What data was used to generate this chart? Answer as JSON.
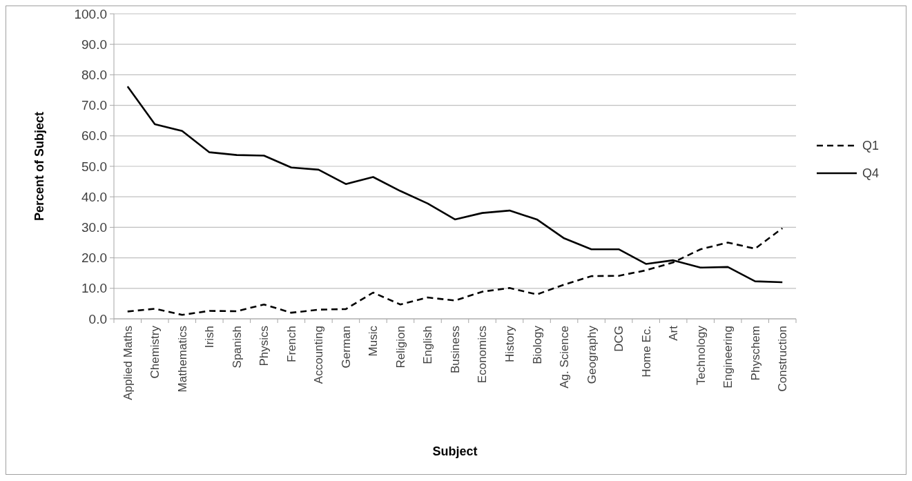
{
  "chart_data": {
    "type": "line",
    "xlabel": "Subject",
    "ylabel": "Percent of Subject",
    "categories": [
      "Applied Maths",
      "Chemistry",
      "Mathematics",
      "Irish",
      "Spanish",
      "Physics",
      "French",
      "Accounting",
      "German",
      "Music",
      "Religion",
      "English",
      "Business",
      "Economics",
      "History",
      "Biology",
      "Ag. Science",
      "Geography",
      "DCG",
      "Home Ec.",
      "Art",
      "Technology",
      "Engineering",
      "Physchem",
      "Construction"
    ],
    "series": [
      {
        "name": "Q1",
        "color": "#000000",
        "line_style": "dashed",
        "values": [
          2.4,
          3.3,
          1.3,
          2.6,
          2.5,
          4.7,
          2.0,
          3.0,
          3.2,
          8.6,
          4.7,
          7.0,
          6.0,
          8.9,
          10.1,
          8.0,
          11.2,
          14.0,
          14.1,
          15.9,
          18.5,
          22.8,
          25.0,
          23.0,
          29.7
        ]
      },
      {
        "name": "Q4",
        "color": "#000000",
        "line_style": "solid",
        "values": [
          76.2,
          63.8,
          61.6,
          54.6,
          53.7,
          53.5,
          49.6,
          48.9,
          44.2,
          46.5,
          41.9,
          37.8,
          32.6,
          34.7,
          35.5,
          32.6,
          26.4,
          22.8,
          22.8,
          18.0,
          19.2,
          16.8,
          17.0,
          12.3,
          12.0
        ]
      }
    ],
    "ylim": [
      0,
      100
    ],
    "yticks": [
      {
        "value": 0,
        "label": "0.0"
      },
      {
        "value": 10,
        "label": "10.0"
      },
      {
        "value": 20,
        "label": "20.0"
      },
      {
        "value": 30,
        "label": "30.0"
      },
      {
        "value": 40,
        "label": "40.0"
      },
      {
        "value": 50,
        "label": "50.0"
      },
      {
        "value": 60,
        "label": "60.0"
      },
      {
        "value": 70,
        "label": "70.0"
      },
      {
        "value": 80,
        "label": "80.0"
      },
      {
        "value": 90,
        "label": "90.0"
      },
      {
        "value": 100,
        "label": "100.0"
      }
    ],
    "grid": "y",
    "legend": "right",
    "marker": "none"
  }
}
